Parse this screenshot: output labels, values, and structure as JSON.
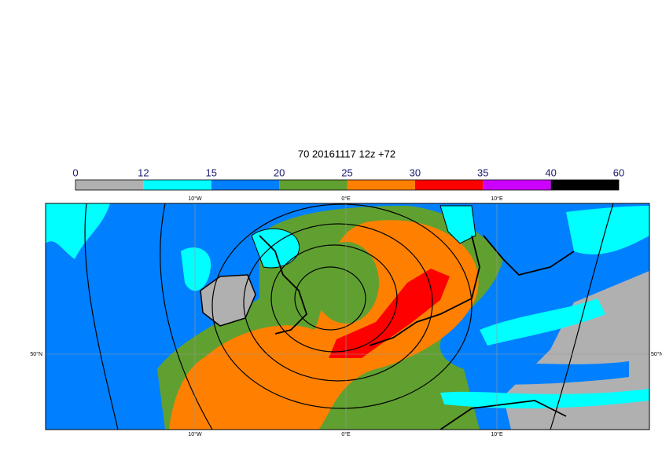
{
  "title": "70 20161117 12z +72",
  "colorbar": {
    "labels": [
      0,
      12,
      15,
      20,
      25,
      30,
      35,
      40,
      60
    ],
    "colors": [
      "#b0b0b0",
      "#00ffff",
      "#0080ff",
      "#60a030",
      "#ff8000",
      "#ff0000",
      "#cc00ff",
      "#000000"
    ]
  },
  "map": {
    "top_labels": [
      "10°W",
      "0°E",
      "10°E"
    ],
    "bottom_labels": [
      "10°W",
      "0°E",
      "10°E"
    ],
    "left_labels": [
      "50°N"
    ],
    "right_labels": [
      "50°N"
    ]
  }
}
